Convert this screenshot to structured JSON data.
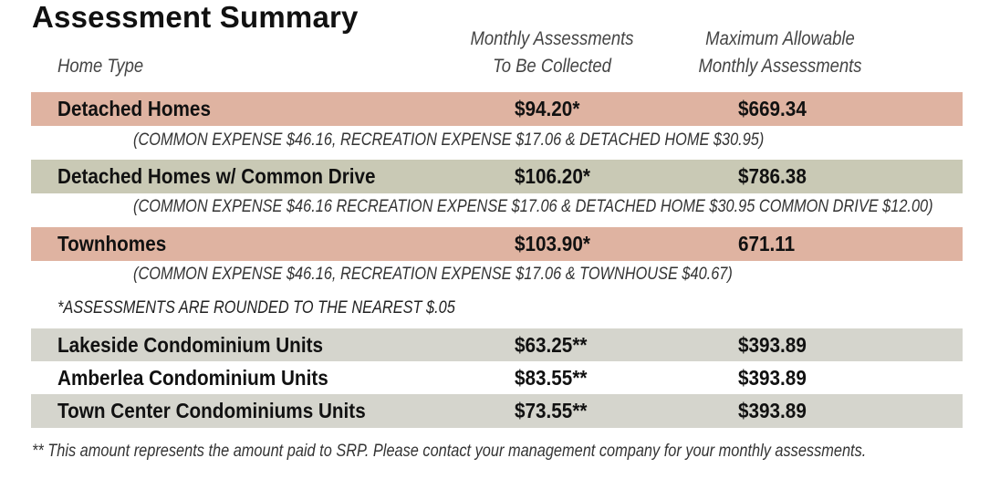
{
  "title": "Assessment Summary",
  "headers": {
    "home_type": "Home Type",
    "monthly_line1": "Monthly Assessments",
    "monthly_line2": "To Be Collected",
    "max_line1": "Maximum Allowable",
    "max_line2": "Monthly Assessments"
  },
  "rows": [
    {
      "type": "Detached Homes",
      "monthly": "$94.20*",
      "max": "$669.34",
      "color": "#dfb3a1"
    },
    {
      "type": "Detached Homes w/ Common Drive",
      "monthly": "$106.20*",
      "max": "$786.38",
      "color": "#c9c9b5"
    },
    {
      "type": "Townhomes",
      "monthly": "$103.90*",
      "max": "671.11",
      "color": "#dfb3a1"
    },
    {
      "type": "Lakeside Condominium Units",
      "monthly": "$63.25**",
      "max": "$393.89",
      "color": "#d5d5cd"
    },
    {
      "type": "Amberlea Condominium Units",
      "monthly": "$83.55**",
      "max": "$393.89",
      "color": "#ffffff"
    },
    {
      "type": "Town Center Condominiums Units",
      "monthly": "$73.55**",
      "max": "$393.89",
      "color": "#d5d5cd"
    }
  ],
  "notes": {
    "detached": "(COMMON EXPENSE $46.16, RECREATION EXPENSE $17.06 & DETACHED HOME $30.95)",
    "common_drive": "(COMMON EXPENSE $46.16 RECREATION EXPENSE $17.06 & DETACHED HOME $30.95 COMMON DRIVE $12.00)",
    "townhomes": "(COMMON EXPENSE $46.16, RECREATION EXPENSE $17.06 & TOWNHOUSE $40.67)",
    "rounding": "*ASSESSMENTS ARE ROUNDED TO THE NEAREST $.05",
    "footer": "** This amount represents the amount paid to SRP. Please contact your management company for your monthly assessments."
  }
}
